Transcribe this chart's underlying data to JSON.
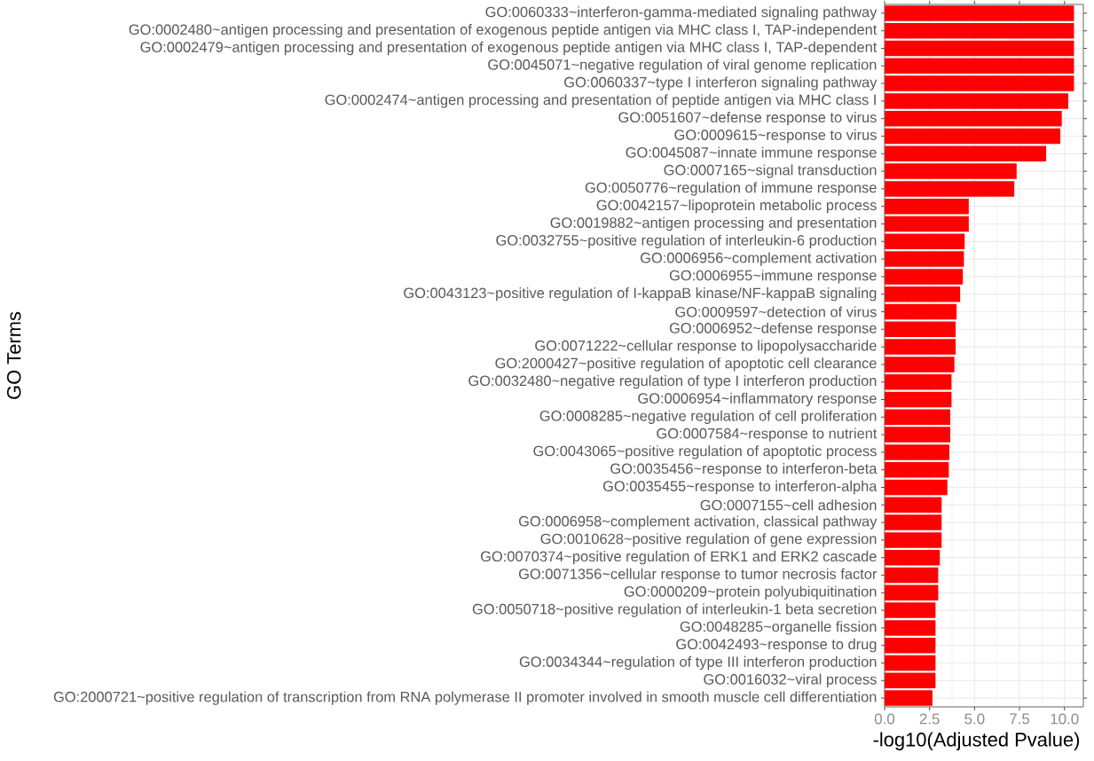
{
  "chart_data": {
    "type": "bar",
    "orientation": "horizontal",
    "xlabel": "-log10(Adjusted Pvalue)",
    "ylabel": "GO Terms",
    "categories": [
      "GO:0060333~interferon-gamma-mediated signaling pathway",
      "GO:0002480~antigen processing and presentation of exogenous peptide antigen via MHC class I, TAP-independent",
      "GO:0002479~antigen processing and presentation of exogenous peptide antigen via MHC class I, TAP-dependent",
      "GO:0045071~negative regulation of viral genome replication",
      "GO:0060337~type I interferon signaling pathway",
      "GO:0002474~antigen processing and presentation of peptide antigen via MHC class I",
      "GO:0051607~defense response to virus",
      "GO:0009615~response to virus",
      "GO:0045087~innate immune response",
      "GO:0007165~signal transduction",
      "GO:0050776~regulation of immune response",
      "GO:0042157~lipoprotein metabolic process",
      "GO:0019882~antigen processing and presentation",
      "GO:0032755~positive regulation of interleukin-6 production",
      "GO:0006956~complement activation",
      "GO:0006955~immune response",
      "GO:0043123~positive regulation of I-kappaB kinase/NF-kappaB signaling",
      "GO:0009597~detection of virus",
      "GO:0006952~defense response",
      "GO:0071222~cellular response to lipopolysaccharide",
      "GO:2000427~positive regulation of apoptotic cell clearance",
      "GO:0032480~negative regulation of type I interferon production",
      "GO:0006954~inflammatory response",
      "GO:0008285~negative regulation of cell proliferation",
      "GO:0007584~response to nutrient",
      "GO:0043065~positive regulation of apoptotic process",
      "GO:0035456~response to interferon-beta",
      "GO:0035455~response to interferon-alpha",
      "GO:0007155~cell adhesion",
      "GO:0006958~complement activation, classical pathway",
      "GO:0010628~positive regulation of gene expression",
      "GO:0070374~positive regulation of ERK1 and ERK2 cascade",
      "GO:0071356~cellular response to tumor necrosis factor",
      "GO:0000209~protein polyubiquitination",
      "GO:0050718~positive regulation of interleukin-1 beta secretion",
      "GO:0048285~organelle fission",
      "GO:0042493~response to drug",
      "GO:0034344~regulation of type III interferon production",
      "GO:0016032~viral process",
      "GO:2000721~positive regulation of transcription from RNA polymerase II promoter involved in smooth muscle cell differentiation"
    ],
    "values": [
      10.53,
      10.53,
      10.53,
      10.53,
      10.53,
      10.21,
      9.85,
      9.77,
      8.98,
      7.34,
      7.21,
      4.68,
      4.68,
      4.45,
      4.41,
      4.35,
      4.2,
      4.0,
      3.95,
      3.95,
      3.88,
      3.72,
      3.72,
      3.65,
      3.65,
      3.6,
      3.57,
      3.49,
      3.17,
      3.17,
      3.17,
      3.07,
      2.98,
      2.98,
      2.83,
      2.83,
      2.83,
      2.83,
      2.83,
      2.66
    ],
    "color": "#ff0000",
    "xlim": [
      0,
      11.05
    ],
    "xticks": [
      {
        "value": 0,
        "label": "0.0"
      },
      2.5,
      {
        "value": 5,
        "label": "5.0"
      },
      7.5,
      {
        "value": 10,
        "label": "10.0"
      }
    ],
    "grid": true
  }
}
